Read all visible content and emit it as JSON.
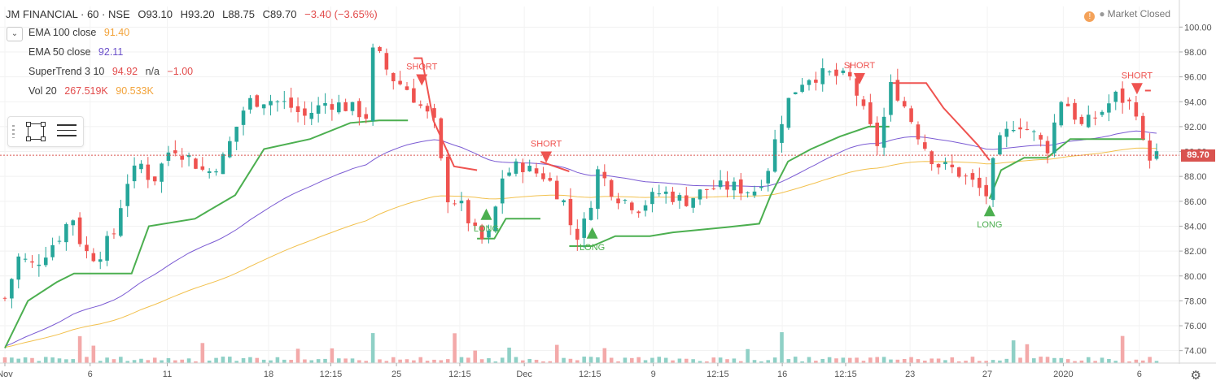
{
  "header": {
    "symbol": "JM FINANCIAL",
    "interval": "60",
    "exchange": "NSE",
    "open": "O93.10",
    "high": "H93.20",
    "low": "L88.75",
    "close": "C89.70",
    "change": "−3.40 (−3.65%)"
  },
  "legend": [
    {
      "name": "EMA 100 close",
      "values": [
        "91.40"
      ],
      "colors": [
        "#f2a33a"
      ]
    },
    {
      "name": "EMA 50 close",
      "values": [
        "92.11"
      ],
      "colors": [
        "#6a4fc9"
      ]
    },
    {
      "name": "SuperTrend 3 10",
      "values": [
        "94.92",
        "n/a",
        "−1.00"
      ],
      "colors": [
        "#e24c4c",
        "#4a4a4a",
        "#e24c4c"
      ]
    },
    {
      "name": "Vol 20",
      "values": [
        "267.519K",
        "90.533K"
      ],
      "colors": [
        "#e24c4c",
        "#f2a33a"
      ]
    }
  ],
  "market_status": "Market Closed",
  "last_price": "89.70",
  "colors": {
    "up": "#26a69a",
    "down": "#ef5350",
    "st_up": "#4caf50",
    "st_down": "#ef5350",
    "ema100": "#f2c14e",
    "ema50": "#7b5bd3",
    "vol_up": "#8fd0c6",
    "vol_down": "#f3a9a9"
  },
  "chart_data": {
    "type": "candlestick",
    "ylim": [
      73,
      101
    ],
    "y_ticks": [
      "100.00",
      "98.00",
      "96.00",
      "94.00",
      "92.00",
      "90.00",
      "88.00",
      "86.00",
      "84.00",
      "82.00",
      "80.00",
      "78.00",
      "76.00",
      "74.00"
    ],
    "x_ticks": [
      {
        "label": "Nov",
        "at": 0.0
      },
      {
        "label": "6",
        "at": 0.074
      },
      {
        "label": "11",
        "at": 0.141
      },
      {
        "label": "18",
        "at": 0.229
      },
      {
        "label": "12:15",
        "at": 0.283
      },
      {
        "label": "25",
        "at": 0.34
      },
      {
        "label": "12:15",
        "at": 0.395
      },
      {
        "label": "Dec",
        "at": 0.451
      },
      {
        "label": "12:15",
        "at": 0.508
      },
      {
        "label": "9",
        "at": 0.563
      },
      {
        "label": "12:15",
        "at": 0.619
      },
      {
        "label": "16",
        "at": 0.675
      },
      {
        "label": "12:15",
        "at": 0.73
      },
      {
        "label": "23",
        "at": 0.786
      },
      {
        "label": "27",
        "at": 0.853
      },
      {
        "label": "2020",
        "at": 0.919
      },
      {
        "label": "6",
        "at": 0.985
      }
    ],
    "anchors": [
      {
        "t": 0.0,
        "p": 78.2
      },
      {
        "t": 0.012,
        "p": 81.5
      },
      {
        "t": 0.025,
        "p": 80.8
      },
      {
        "t": 0.038,
        "p": 82.2
      },
      {
        "t": 0.05,
        "p": 83.5
      },
      {
        "t": 0.058,
        "p": 85.0
      },
      {
        "t": 0.068,
        "p": 82.0
      },
      {
        "t": 0.08,
        "p": 81.5
      },
      {
        "t": 0.095,
        "p": 83.5
      },
      {
        "t": 0.105,
        "p": 87.5
      },
      {
        "t": 0.118,
        "p": 89.0
      },
      {
        "t": 0.128,
        "p": 87.5
      },
      {
        "t": 0.145,
        "p": 90.5
      },
      {
        "t": 0.16,
        "p": 89.5
      },
      {
        "t": 0.175,
        "p": 88.2
      },
      {
        "t": 0.19,
        "p": 89.5
      },
      {
        "t": 0.21,
        "p": 94.0
      },
      {
        "t": 0.228,
        "p": 94.2
      },
      {
        "t": 0.245,
        "p": 93.8
      },
      {
        "t": 0.26,
        "p": 92.8
      },
      {
        "t": 0.28,
        "p": 94.0
      },
      {
        "t": 0.3,
        "p": 93.5
      },
      {
        "t": 0.315,
        "p": 92.8
      },
      {
        "t": 0.32,
        "p": 98.5
      },
      {
        "t": 0.335,
        "p": 96.0
      },
      {
        "t": 0.35,
        "p": 95.0
      },
      {
        "t": 0.362,
        "p": 93.5
      },
      {
        "t": 0.375,
        "p": 92.0
      },
      {
        "t": 0.382,
        "p": 86.5
      },
      {
        "t": 0.395,
        "p": 85.8
      },
      {
        "t": 0.408,
        "p": 83.5
      },
      {
        "t": 0.418,
        "p": 82.5
      },
      {
        "t": 0.425,
        "p": 85.0
      },
      {
        "t": 0.432,
        "p": 88.0
      },
      {
        "t": 0.448,
        "p": 89.0
      },
      {
        "t": 0.455,
        "p": 88.5
      },
      {
        "t": 0.47,
        "p": 88.0
      },
      {
        "t": 0.485,
        "p": 86.0
      },
      {
        "t": 0.495,
        "p": 83.0
      },
      {
        "t": 0.505,
        "p": 84.5
      },
      {
        "t": 0.515,
        "p": 88.5
      },
      {
        "t": 0.53,
        "p": 86.5
      },
      {
        "t": 0.55,
        "p": 85.5
      },
      {
        "t": 0.57,
        "p": 86.8
      },
      {
        "t": 0.59,
        "p": 86.0
      },
      {
        "t": 0.61,
        "p": 87.0
      },
      {
        "t": 0.63,
        "p": 87.2
      },
      {
        "t": 0.65,
        "p": 86.8
      },
      {
        "t": 0.662,
        "p": 88.5
      },
      {
        "t": 0.672,
        "p": 92.0
      },
      {
        "t": 0.682,
        "p": 94.5
      },
      {
        "t": 0.695,
        "p": 96.0
      },
      {
        "t": 0.715,
        "p": 96.2
      },
      {
        "t": 0.735,
        "p": 95.8
      },
      {
        "t": 0.748,
        "p": 92.5
      },
      {
        "t": 0.758,
        "p": 90.5
      },
      {
        "t": 0.77,
        "p": 95.5
      },
      {
        "t": 0.782,
        "p": 93.5
      },
      {
        "t": 0.795,
        "p": 91.0
      },
      {
        "t": 0.808,
        "p": 89.0
      },
      {
        "t": 0.825,
        "p": 88.5
      },
      {
        "t": 0.84,
        "p": 87.5
      },
      {
        "t": 0.852,
        "p": 86.5
      },
      {
        "t": 0.862,
        "p": 90.5
      },
      {
        "t": 0.878,
        "p": 92.5
      },
      {
        "t": 0.892,
        "p": 91.5
      },
      {
        "t": 0.905,
        "p": 90.2
      },
      {
        "t": 0.918,
        "p": 94.5
      },
      {
        "t": 0.935,
        "p": 92.0
      },
      {
        "t": 0.95,
        "p": 93.0
      },
      {
        "t": 0.965,
        "p": 94.5
      },
      {
        "t": 0.982,
        "p": 93.5
      },
      {
        "t": 0.99,
        "p": 89.7
      }
    ],
    "supertrend": [
      {
        "t": 0.0,
        "p": 74.2,
        "d": "up"
      },
      {
        "t": 0.02,
        "p": 78.0,
        "d": "up"
      },
      {
        "t": 0.045,
        "p": 79.5,
        "d": "up"
      },
      {
        "t": 0.06,
        "p": 80.2,
        "d": "up"
      },
      {
        "t": 0.075,
        "p": 80.2,
        "d": "up"
      },
      {
        "t": 0.11,
        "p": 80.2,
        "d": "up"
      },
      {
        "t": 0.125,
        "p": 84.0,
        "d": "up"
      },
      {
        "t": 0.165,
        "p": 84.6,
        "d": "up"
      },
      {
        "t": 0.2,
        "p": 86.5,
        "d": "up"
      },
      {
        "t": 0.225,
        "p": 90.2,
        "d": "up"
      },
      {
        "t": 0.265,
        "p": 91.0,
        "d": "up"
      },
      {
        "t": 0.3,
        "p": 92.3,
        "d": "up"
      },
      {
        "t": 0.325,
        "p": 92.5,
        "d": "up"
      },
      {
        "t": 0.35,
        "p": 92.5,
        "d": "up"
      },
      {
        "t": 0.355,
        "p": 97.5,
        "d": "down"
      },
      {
        "t": 0.362,
        "p": 97.5,
        "d": "down"
      },
      {
        "t": 0.372,
        "p": 92.5,
        "d": "down"
      },
      {
        "t": 0.39,
        "p": 88.8,
        "d": "down"
      },
      {
        "t": 0.41,
        "p": 88.5,
        "d": "down"
      },
      {
        "t": 0.41,
        "p": 83.0,
        "d": "up"
      },
      {
        "t": 0.425,
        "p": 83.0,
        "d": "up"
      },
      {
        "t": 0.435,
        "p": 84.6,
        "d": "up"
      },
      {
        "t": 0.465,
        "p": 84.6,
        "d": "up"
      },
      {
        "t": 0.465,
        "p": 89.2,
        "d": "down"
      },
      {
        "t": 0.49,
        "p": 88.4,
        "d": "down"
      },
      {
        "t": 0.49,
        "p": 82.4,
        "d": "up"
      },
      {
        "t": 0.51,
        "p": 82.4,
        "d": "up"
      },
      {
        "t": 0.53,
        "p": 83.2,
        "d": "up"
      },
      {
        "t": 0.56,
        "p": 83.2,
        "d": "up"
      },
      {
        "t": 0.58,
        "p": 83.5,
        "d": "up"
      },
      {
        "t": 0.625,
        "p": 83.9,
        "d": "up"
      },
      {
        "t": 0.655,
        "p": 84.2,
        "d": "up"
      },
      {
        "t": 0.665,
        "p": 86.5,
        "d": "up"
      },
      {
        "t": 0.68,
        "p": 89.2,
        "d": "up"
      },
      {
        "t": 0.7,
        "p": 90.2,
        "d": "up"
      },
      {
        "t": 0.725,
        "p": 91.2,
        "d": "up"
      },
      {
        "t": 0.75,
        "p": 92.0,
        "d": "up"
      },
      {
        "t": 0.768,
        "p": 92.0,
        "d": "up"
      },
      {
        "t": 0.768,
        "p": 95.5,
        "d": "down"
      },
      {
        "t": 0.8,
        "p": 95.5,
        "d": "down"
      },
      {
        "t": 0.815,
        "p": 93.5,
        "d": "down"
      },
      {
        "t": 0.83,
        "p": 92.0,
        "d": "down"
      },
      {
        "t": 0.845,
        "p": 90.5,
        "d": "down"
      },
      {
        "t": 0.855,
        "p": 89.3,
        "d": "down"
      },
      {
        "t": 0.855,
        "p": 86.2,
        "d": "up"
      },
      {
        "t": 0.865,
        "p": 88.5,
        "d": "up"
      },
      {
        "t": 0.885,
        "p": 89.5,
        "d": "up"
      },
      {
        "t": 0.905,
        "p": 89.5,
        "d": "up"
      },
      {
        "t": 0.925,
        "p": 91.0,
        "d": "up"
      },
      {
        "t": 0.99,
        "p": 91.0,
        "d": "up"
      },
      {
        "t": 0.99,
        "p": 94.9,
        "d": "down"
      },
      {
        "t": 0.995,
        "p": 94.9,
        "d": "down"
      }
    ],
    "signals": [
      {
        "type": "SHORT",
        "t": 0.362,
        "p": 96.2
      },
      {
        "type": "LONG",
        "t": 0.418,
        "p": 84.5
      },
      {
        "type": "SHORT",
        "t": 0.47,
        "p": 90.0
      },
      {
        "type": "LONG",
        "t": 0.51,
        "p": 83.0
      },
      {
        "type": "SHORT",
        "t": 0.742,
        "p": 96.3
      },
      {
        "type": "LONG",
        "t": 0.855,
        "p": 84.8
      },
      {
        "type": "SHORT",
        "t": 0.983,
        "p": 95.5
      }
    ]
  }
}
